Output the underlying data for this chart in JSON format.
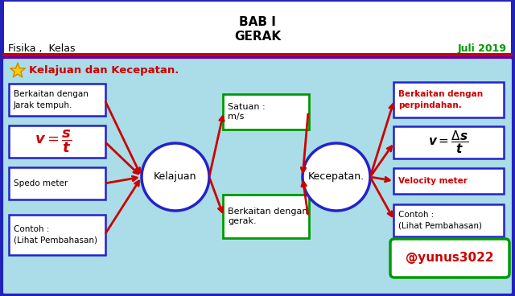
{
  "title1": "BAB I",
  "title2": "GERAK",
  "subtitle_left": "Fisika ,  Kelas",
  "subtitle_right": "Juli 2019",
  "section_title": "Kelajuan dan Kecepatan.",
  "left_circle_label": "Kelajuan",
  "right_circle_label": "Kecepatan.",
  "left_boxes": [
    "Berkaitan dengan\nJarak tempuh.",
    "FORMULA_LEFT",
    "Spedo meter",
    "Contoh :\n(Lihat Pembahasan)"
  ],
  "middle_boxes_top": "Satuan :\nm/s",
  "middle_boxes_bot": "Berkaitan dengan\ngerak.",
  "right_boxes": [
    "Berkaitan dengan\nperpindahan.",
    "FORMULA_RIGHT",
    "Velocity meter",
    "Contoh :\n(Lihat Pembahasan)"
  ],
  "watermark": "@yunus3022",
  "bg_outer": "#2222bb",
  "bg_inner": "#aadde8",
  "box_border_blue": "#2222cc",
  "box_border_green": "#009900",
  "circle_color": "#2222cc",
  "arrow_color": "#cc0000",
  "red_text": "#cc0000",
  "green_text": "#009900",
  "star_color": "#ffcc00"
}
